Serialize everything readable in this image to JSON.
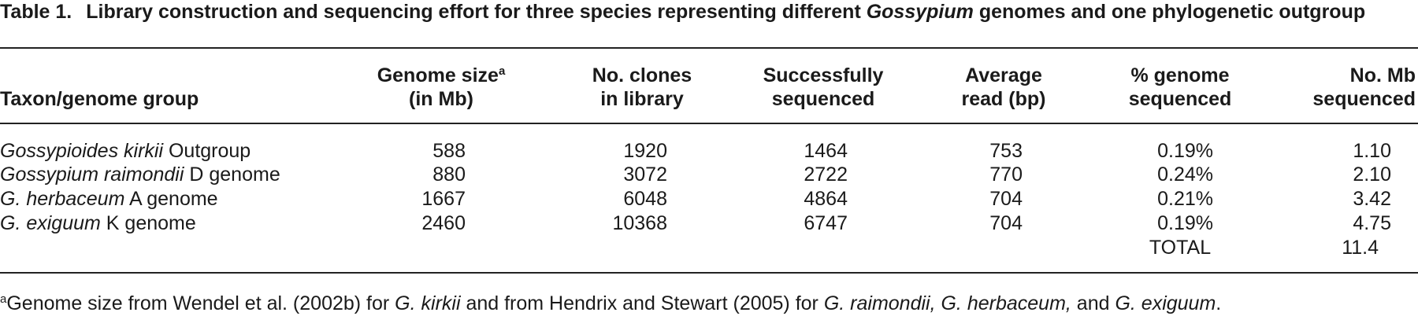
{
  "caption": {
    "label": "Table 1.",
    "segments": [
      {
        "text": "Library construction and sequencing effort for three species representing different ",
        "italic": false
      },
      {
        "text": "Gossypium",
        "italic": true
      },
      {
        "text": " genomes and one phylogenetic outgroup",
        "italic": false
      }
    ]
  },
  "table": {
    "header": [
      {
        "lines": [
          "Taxon/genome group"
        ]
      },
      {
        "lines": [
          "Genome size",
          "(in Mb)"
        ],
        "note": "a"
      },
      {
        "lines": [
          "No. clones",
          "in library"
        ]
      },
      {
        "lines": [
          "Successfully",
          "sequenced"
        ]
      },
      {
        "lines": [
          "Average",
          "read (bp)"
        ]
      },
      {
        "lines": [
          "% genome",
          "sequenced"
        ]
      },
      {
        "lines": [
          "No. Mb",
          "sequenced"
        ]
      }
    ],
    "rows": [
      {
        "taxon": "Gossypioides kirkii",
        "group": "Outgroup",
        "cells": [
          "588",
          "1920",
          "1464",
          "753",
          "0.19%",
          "1.10"
        ]
      },
      {
        "taxon": "Gossypium raimondii",
        "group": "D genome",
        "cells": [
          "880",
          "3072",
          "2722",
          "770",
          "0.24%",
          "2.10"
        ]
      },
      {
        "taxon": "G. herbaceum",
        "group": "A genome",
        "cells": [
          "1667",
          "6048",
          "4864",
          "704",
          "0.21%",
          "3.42"
        ]
      },
      {
        "taxon": "G. exiguum",
        "group": "K genome",
        "cells": [
          "2460",
          "10368",
          "6747",
          "704",
          "0.19%",
          "4.75"
        ]
      }
    ],
    "total": {
      "label": "TOTAL",
      "value": "11.4"
    }
  },
  "footnote": {
    "mark": "a",
    "segments": [
      {
        "text": "Genome size from Wendel et al. (2002b) for ",
        "italic": false
      },
      {
        "text": "G. kirkii",
        "italic": true
      },
      {
        "text": " and from Hendrix and Stewart (2005) for ",
        "italic": false
      },
      {
        "text": "G. raimondii, G. herbaceum,",
        "italic": true
      },
      {
        "text": " and ",
        "italic": false
      },
      {
        "text": "G. exiguum",
        "italic": true
      },
      {
        "text": ".",
        "italic": false
      }
    ]
  }
}
